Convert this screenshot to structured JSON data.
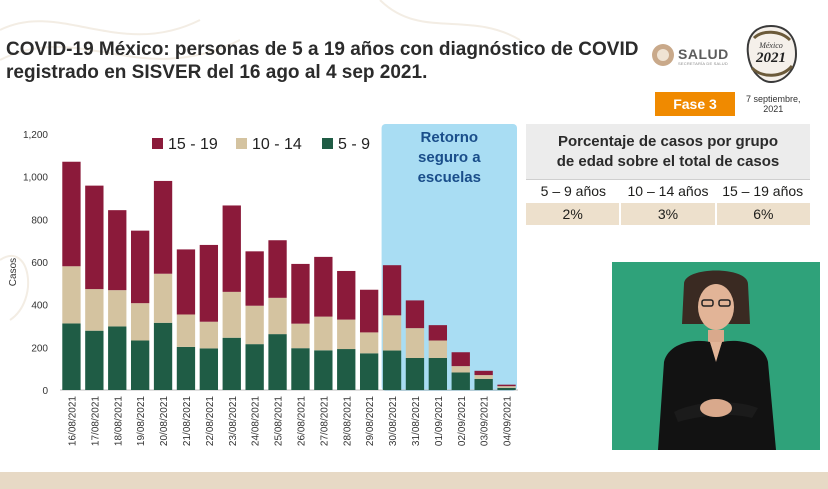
{
  "title": "COVID-19 México: personas de 5 a 19 años con diagnóstico de COVID registrado en SISVER del 16 ago al 4 sep 2021.",
  "logos": {
    "salud": "SALUD",
    "salud_sub": "SECRETARÍA DE SALUD",
    "year_logo": "2021",
    "year_logo_top": "México"
  },
  "fase_label": "Fase 3",
  "date_line1": "7 septiembre,",
  "date_line2": "2021",
  "chart_data": {
    "type": "bar",
    "stacked": true,
    "ylabel": "Casos",
    "ylim": [
      0,
      1200
    ],
    "yticks": [
      "0",
      "200",
      "400",
      "600",
      "800",
      "1,000",
      "1,200"
    ],
    "ytick_values": [
      0,
      200,
      400,
      600,
      800,
      1000,
      1200
    ],
    "categories": [
      "16/08/2021",
      "17/08/2021",
      "18/08/2021",
      "19/08/2021",
      "20/08/2021",
      "21/08/2021",
      "22/08/2021",
      "23/08/2021",
      "24/08/2021",
      "25/08/2021",
      "26/08/2021",
      "27/08/2021",
      "28/08/2021",
      "29/08/2021",
      "30/08/2021",
      "31/08/2021",
      "01/09/2021",
      "02/09/2021",
      "03/09/2021",
      "04/09/2021"
    ],
    "series": [
      {
        "name": "5 - 9",
        "color": "#1f5c45",
        "values": [
          312,
          278,
          298,
          232,
          315,
          202,
          195,
          245,
          215,
          262,
          196,
          186,
          192,
          172,
          185,
          150,
          150,
          82,
          52,
          10
        ]
      },
      {
        "name": "10 - 14",
        "color": "#d4c3a0",
        "values": [
          268,
          195,
          170,
          175,
          230,
          152,
          125,
          215,
          180,
          170,
          115,
          158,
          138,
          98,
          165,
          140,
          82,
          30,
          18,
          8
        ]
      },
      {
        "name": "15 - 19",
        "color": "#8b1a3a",
        "values": [
          490,
          485,
          375,
          340,
          435,
          305,
          360,
          405,
          255,
          270,
          280,
          280,
          228,
          200,
          235,
          130,
          72,
          65,
          20,
          7
        ]
      }
    ],
    "legend_order": [
      "15 - 19",
      "10 - 14",
      "5 - 9"
    ],
    "legend_position": "top",
    "annotation": {
      "lines": [
        "Retorno",
        "seguro a",
        "escuelas"
      ],
      "from_category": "30/08/2021",
      "to_category": "04/09/2021",
      "color": "#a9ddf3"
    }
  },
  "pct_table": {
    "header": [
      "Porcentaje de casos por grupo",
      "de edad sobre el total de casos"
    ],
    "labels": [
      "5 – 9 años",
      "10 – 14 años",
      "15 – 19 años"
    ],
    "values": [
      "2%",
      "3%",
      "6%"
    ]
  }
}
